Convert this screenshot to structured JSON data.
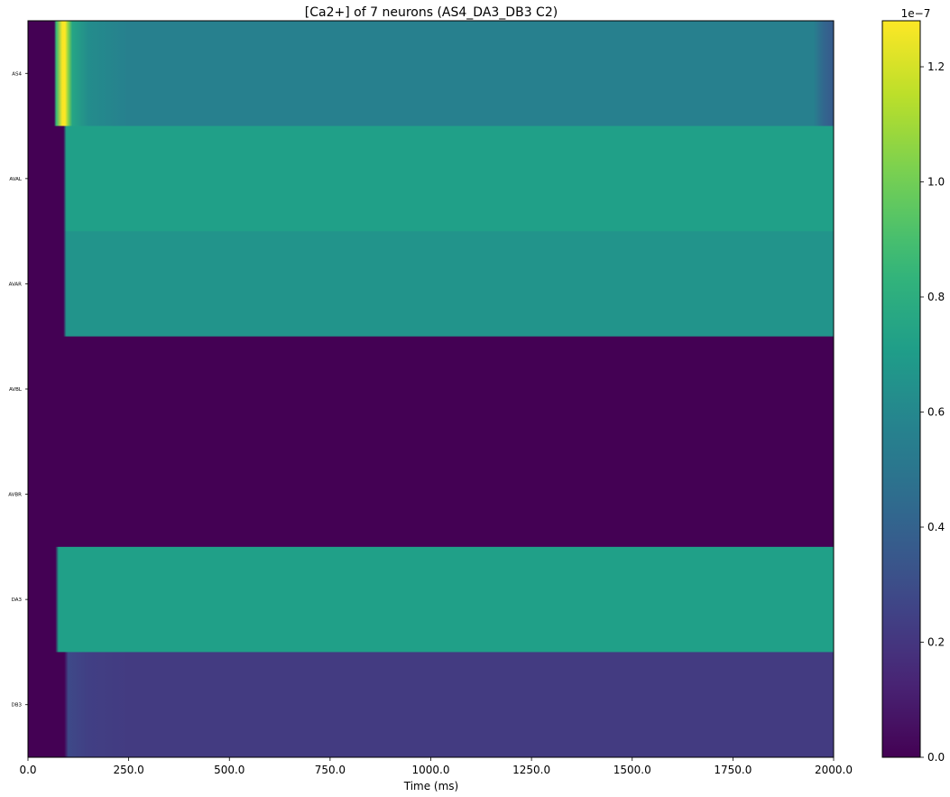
{
  "chart_data": {
    "type": "heatmap",
    "title": "[Ca2+] of 7 neurons (AS4_DA3_DB3 C2)",
    "xlabel": "Time (ms)",
    "ylabel": "",
    "xlim": [
      0,
      2000
    ],
    "x_ticks": [
      "0.0",
      "250.0",
      "500.0",
      "750.0",
      "1000.0",
      "1250.0",
      "1500.0",
      "1750.0",
      "2000.0"
    ],
    "rows": [
      "AS4",
      "AVAL",
      "AVAR",
      "AVBL",
      "AVBR",
      "DA3",
      "DB3"
    ],
    "colormap": "viridis",
    "colorbar": {
      "range": [
        0,
        1.28e-07
      ],
      "ticks": [
        "0.0",
        "0.2",
        "0.4",
        "0.6",
        "0.8",
        "1.0",
        "1.2"
      ],
      "offset_label": "1e−7"
    },
    "series": [
      {
        "name": "AS4",
        "time": [
          0,
          65,
          70,
          85,
          92,
          100,
          110,
          150,
          250,
          1950,
          1975,
          2000
        ],
        "value": [
          0,
          0,
          8.5e-08,
          1.27e-07,
          1.28e-07,
          1.05e-07,
          7.5e-08,
          6.2e-08,
          5.6e-08,
          5.6e-08,
          4.2e-08,
          3.6e-08
        ]
      },
      {
        "name": "AVAL",
        "time": [
          0,
          88,
          95,
          2000
        ],
        "value": [
          0,
          0,
          7.2e-08,
          7.2e-08
        ]
      },
      {
        "name": "AVAR",
        "time": [
          0,
          88,
          95,
          2000
        ],
        "value": [
          0,
          0,
          6.6e-08,
          6.6e-08
        ]
      },
      {
        "name": "AVBL",
        "time": [
          0,
          2000
        ],
        "value": [
          0,
          0
        ]
      },
      {
        "name": "AVBR",
        "time": [
          0,
          2000
        ],
        "value": [
          0,
          0
        ]
      },
      {
        "name": "DA3",
        "time": [
          0,
          68,
          76,
          2000
        ],
        "value": [
          0,
          0,
          7.2e-08,
          7.2e-08
        ]
      },
      {
        "name": "DB3",
        "time": [
          0,
          90,
          100,
          150,
          250,
          2000
        ],
        "value": [
          0,
          0,
          2.8e-08,
          2.4e-08,
          2.2e-08,
          2.2e-08
        ]
      }
    ]
  }
}
